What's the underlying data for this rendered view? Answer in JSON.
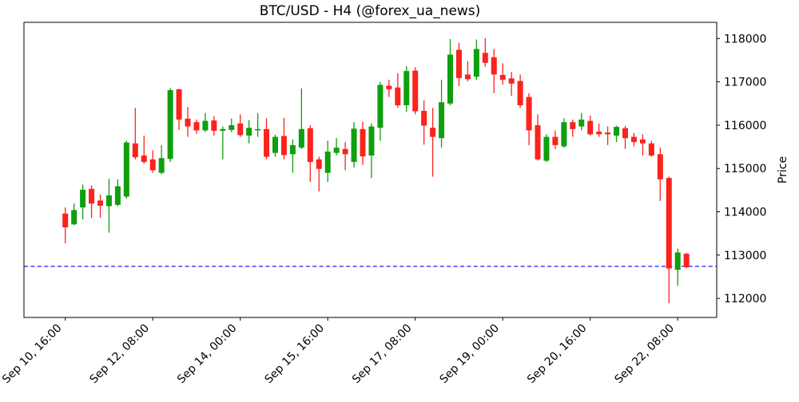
{
  "chart_data": {
    "type": "candlestick",
    "title": "BTC/USD - H4 (@forex_ua_news)",
    "ylabel": "Price",
    "timeframe": "H4",
    "grid": false,
    "y_axis": {
      "min": 111560,
      "max": 118375,
      "ticks": [
        112000,
        113000,
        114000,
        115000,
        116000,
        117000,
        118000
      ],
      "side": "right"
    },
    "x_axis": {
      "tick_indices": [
        0,
        10,
        20,
        30,
        40,
        50,
        60,
        70
      ],
      "tick_labels": [
        "Sep 10, 16:00",
        "Sep 12, 08:00",
        "Sep 14, 00:00",
        "Sep 15, 16:00",
        "Sep 17, 08:00",
        "Sep 19, 00:00",
        "Sep 20, 16:00",
        "Sep 22, 08:00"
      ]
    },
    "hline": {
      "price": 112740,
      "color": "#0000ff",
      "style": "dashed"
    },
    "colors": {
      "up": "#0f9f0f",
      "down": "#fb231c",
      "hline": "#0000ff",
      "axis": "#000000"
    },
    "candles_format": [
      "time",
      "open",
      "high",
      "low",
      "close"
    ],
    "candles": [
      [
        "Sep 10 16:00",
        113960,
        114100,
        113270,
        113640
      ],
      [
        "Sep 10 20:00",
        113710,
        114190,
        113690,
        114040
      ],
      [
        "Sep 11 00:00",
        114100,
        114630,
        113820,
        114510
      ],
      [
        "Sep 11 04:00",
        114530,
        114610,
        113860,
        114190
      ],
      [
        "Sep 11 08:00",
        114260,
        114400,
        113860,
        114140
      ],
      [
        "Sep 11 12:00",
        114130,
        114760,
        113520,
        114380
      ],
      [
        "Sep 11 16:00",
        114160,
        114750,
        114130,
        114590
      ],
      [
        "Sep 11 20:00",
        114350,
        115640,
        114300,
        115600
      ],
      [
        "Sep 12 00:00",
        115580,
        116400,
        115210,
        115260
      ],
      [
        "Sep 12 04:00",
        115300,
        115760,
        115110,
        115150
      ],
      [
        "Sep 12 08:00",
        115210,
        115420,
        114900,
        114960
      ],
      [
        "Sep 12 12:00",
        114900,
        115540,
        114870,
        115240
      ],
      [
        "Sep 12 16:00",
        115220,
        116860,
        115150,
        116810
      ],
      [
        "Sep 12 20:00",
        116830,
        116840,
        115890,
        116130
      ],
      [
        "Sep 13 00:00",
        116150,
        116420,
        115730,
        115970
      ],
      [
        "Sep 13 04:00",
        116070,
        116130,
        115800,
        115880
      ],
      [
        "Sep 13 08:00",
        115880,
        116280,
        115840,
        116100
      ],
      [
        "Sep 13 12:00",
        116110,
        116210,
        115760,
        115870
      ],
      [
        "Sep 13 16:00",
        115870,
        115970,
        115210,
        115910
      ],
      [
        "Sep 13 20:00",
        115890,
        116150,
        115840,
        116000
      ],
      [
        "Sep 14 00:00",
        116040,
        116250,
        115730,
        115770
      ],
      [
        "Sep 14 04:00",
        115760,
        116120,
        115580,
        115940
      ],
      [
        "Sep 14 08:00",
        115880,
        116280,
        115730,
        115910
      ],
      [
        "Sep 14 12:00",
        115910,
        116160,
        115210,
        115270
      ],
      [
        "Sep 14 16:00",
        115360,
        115780,
        115270,
        115730
      ],
      [
        "Sep 14 20:00",
        115750,
        116170,
        115210,
        115310
      ],
      [
        "Sep 15 00:00",
        115330,
        115670,
        114900,
        115540
      ],
      [
        "Sep 15 04:00",
        115480,
        116850,
        115450,
        115910
      ],
      [
        "Sep 15 08:00",
        115930,
        116000,
        114690,
        115150
      ],
      [
        "Sep 15 12:00",
        115210,
        115270,
        114470,
        114990
      ],
      [
        "Sep 15 16:00",
        114900,
        115640,
        114690,
        115390
      ],
      [
        "Sep 15 20:00",
        115360,
        115700,
        115300,
        115480
      ],
      [
        "Sep 16 00:00",
        115450,
        115610,
        114960,
        115330
      ],
      [
        "Sep 16 04:00",
        115150,
        116070,
        115020,
        115920
      ],
      [
        "Sep 16 08:00",
        115910,
        116080,
        115080,
        115280
      ],
      [
        "Sep 16 12:00",
        115300,
        116040,
        114780,
        115970
      ],
      [
        "Sep 16 16:00",
        115940,
        117000,
        115640,
        116930
      ],
      [
        "Sep 16 20:00",
        116910,
        117050,
        116650,
        116830
      ],
      [
        "Sep 17 00:00",
        116870,
        117200,
        116400,
        116460
      ],
      [
        "Sep 17 04:00",
        116460,
        117360,
        116310,
        117250
      ],
      [
        "Sep 17 08:00",
        117260,
        117340,
        116250,
        116320
      ],
      [
        "Sep 17 12:00",
        116330,
        116570,
        115550,
        115990
      ],
      [
        "Sep 17 16:00",
        115940,
        116400,
        114810,
        115730
      ],
      [
        "Sep 17 20:00",
        115700,
        117050,
        115480,
        116530
      ],
      [
        "Sep 18 00:00",
        116500,
        117990,
        116460,
        117630
      ],
      [
        "Sep 18 04:00",
        117740,
        117900,
        116900,
        117090
      ],
      [
        "Sep 18 08:00",
        117170,
        117480,
        117010,
        117060
      ],
      [
        "Sep 18 12:00",
        117120,
        117980,
        117050,
        117760
      ],
      [
        "Sep 18 16:00",
        117670,
        118010,
        117350,
        117440
      ],
      [
        "Sep 18 20:00",
        117570,
        117760,
        116740,
        117170
      ],
      [
        "Sep 19 00:00",
        117160,
        117430,
        116940,
        117050
      ],
      [
        "Sep 19 04:00",
        117080,
        117230,
        116680,
        116960
      ],
      [
        "Sep 19 08:00",
        117020,
        117170,
        116400,
        116460
      ],
      [
        "Sep 19 12:00",
        116650,
        116740,
        115540,
        115880
      ],
      [
        "Sep 19 16:00",
        116000,
        116250,
        115180,
        115210
      ],
      [
        "Sep 19 20:00",
        115180,
        115790,
        115150,
        115730
      ],
      [
        "Sep 20 00:00",
        115730,
        115880,
        115450,
        115540
      ],
      [
        "Sep 20 04:00",
        115510,
        116160,
        115480,
        116070
      ],
      [
        "Sep 20 08:00",
        116070,
        116130,
        115730,
        115910
      ],
      [
        "Sep 20 12:00",
        115970,
        116280,
        115880,
        116130
      ],
      [
        "Sep 20 16:00",
        116100,
        116220,
        115760,
        115790
      ],
      [
        "Sep 20 20:00",
        115850,
        116040,
        115730,
        115790
      ],
      [
        "Sep 21 00:00",
        115830,
        115970,
        115540,
        115790
      ],
      [
        "Sep 21 04:00",
        115760,
        115990,
        115610,
        115960
      ],
      [
        "Sep 21 08:00",
        115930,
        115980,
        115450,
        115700
      ],
      [
        "Sep 21 12:00",
        115730,
        115820,
        115510,
        115610
      ],
      [
        "Sep 21 16:00",
        115670,
        115790,
        115300,
        115580
      ],
      [
        "Sep 21 20:00",
        115580,
        115640,
        115270,
        115300
      ],
      [
        "Sep 22 00:00",
        115330,
        115480,
        114250,
        114750
      ],
      [
        "Sep 22 04:00",
        114780,
        114810,
        111890,
        112690
      ],
      [
        "Sep 22 08:00",
        112660,
        113150,
        112290,
        113060
      ],
      [
        "Sep 22 12:00",
        113030,
        113050,
        112700,
        112720
      ]
    ]
  }
}
